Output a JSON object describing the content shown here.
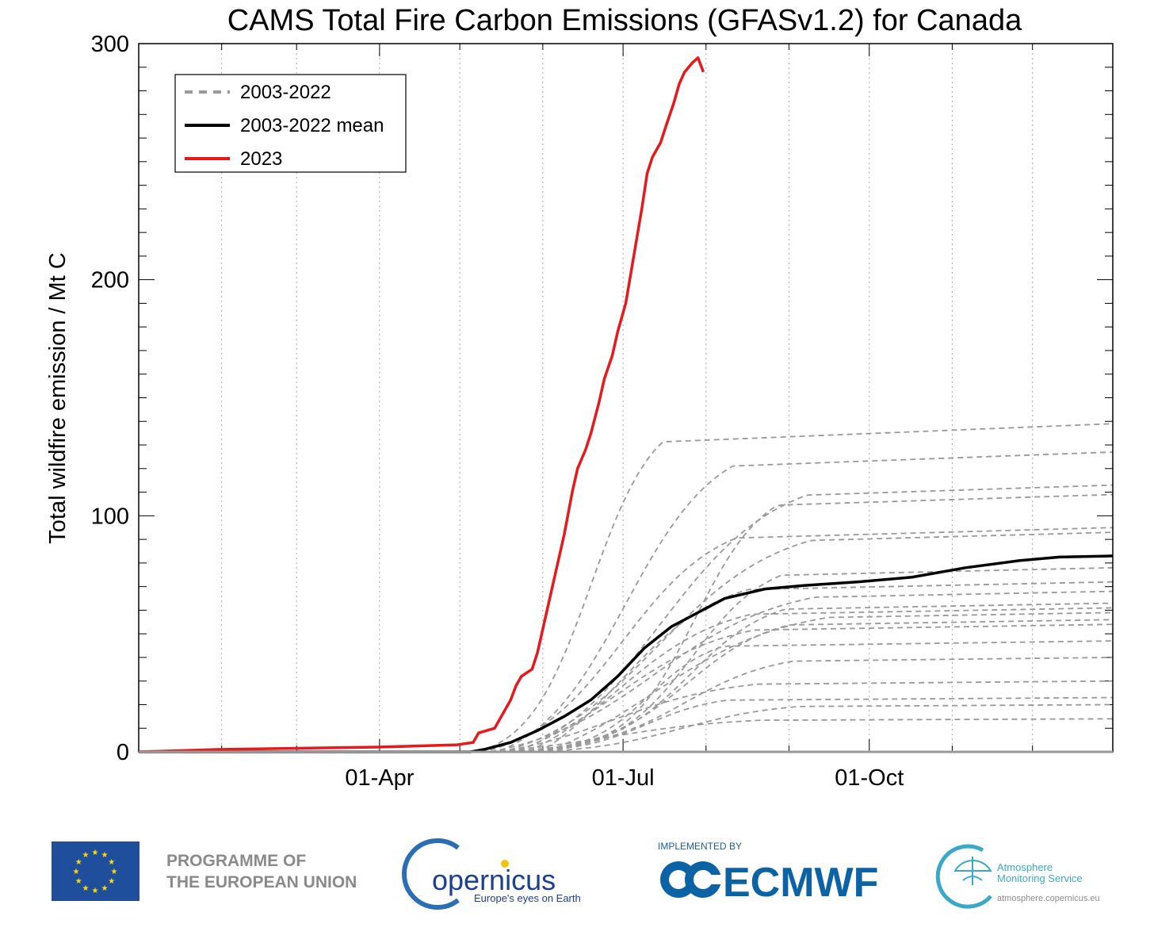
{
  "chart_data": {
    "type": "line",
    "title": "CAMS Total Fire Carbon Emissions (GFASv1.2) for Canada",
    "xlabel": "",
    "ylabel": "Total wildfire emission / Mt C",
    "x_unit": "day of year",
    "xlim": [
      1,
      365
    ],
    "ylim": [
      0,
      300
    ],
    "x_ticks": [
      {
        "day": 91,
        "label": "01-Apr"
      },
      {
        "day": 182,
        "label": "01-Jul"
      },
      {
        "day": 274,
        "label": "01-Oct"
      }
    ],
    "y_ticks": [
      {
        "value": 0,
        "label": "0"
      },
      {
        "value": 100,
        "label": "100"
      },
      {
        "value": 200,
        "label": "200"
      },
      {
        "value": 300,
        "label": "300"
      }
    ],
    "grid": "vertical dotted monthly",
    "legend_position": "top-left",
    "legend": [
      {
        "label": "2003-2022",
        "style": "dashed",
        "color": "#999999"
      },
      {
        "label": "2003-2022 mean",
        "style": "solid",
        "color": "#000000"
      },
      {
        "label": "2023",
        "style": "solid",
        "color": "#e41a1c"
      }
    ],
    "series_2023": {
      "name": "2023",
      "color": "#e41a1c",
      "x": [
        1,
        30,
        60,
        90,
        120,
        126,
        128,
        134,
        136,
        140,
        142,
        144,
        148,
        150,
        152,
        154,
        158,
        160,
        163,
        165,
        168,
        170,
        173,
        175,
        178,
        180,
        183,
        186,
        189,
        191,
        193,
        196,
        198,
        201,
        203,
        205,
        208,
        210,
        212
      ],
      "y": [
        0,
        1,
        1.5,
        2,
        3,
        4,
        8,
        10,
        14,
        22,
        28,
        32,
        35,
        42,
        52,
        62,
        82,
        92,
        110,
        120,
        128,
        135,
        148,
        158,
        168,
        178,
        190,
        210,
        230,
        245,
        252,
        258,
        265,
        275,
        283,
        288,
        292,
        294,
        288
      ]
    },
    "series_mean": {
      "name": "2003-2022 mean",
      "color": "#000000",
      "x": [
        1,
        125,
        130,
        140,
        150,
        160,
        170,
        180,
        190,
        200,
        210,
        220,
        235,
        250,
        270,
        290,
        310,
        330,
        345,
        365
      ],
      "y": [
        0,
        0,
        1,
        4,
        9,
        15,
        22,
        32,
        44,
        53,
        59,
        65,
        69,
        70.5,
        72,
        74,
        78,
        81,
        82.5,
        83
      ]
    },
    "series_years": {
      "name": "2003-2022",
      "color": "#999999",
      "style": "dashed",
      "final_values": [
        139,
        127,
        113,
        109,
        95,
        93,
        78,
        72,
        68,
        63,
        61,
        59,
        56,
        54,
        47,
        40,
        30,
        23,
        20,
        14
      ]
    }
  },
  "logos": {
    "eu_programme_line1": "PROGRAMME OF",
    "eu_programme_line2": "THE EUROPEAN UNION",
    "copernicus_name": "opernicus",
    "copernicus_tagline": "Europe's eyes on Earth",
    "implemented_by": "IMPLEMENTED BY",
    "ecmwf": "ECMWF",
    "cams_line1": "Atmosphere",
    "cams_line2": "Monitoring Service",
    "cams_url": "atmosphere.copernicus.eu"
  }
}
